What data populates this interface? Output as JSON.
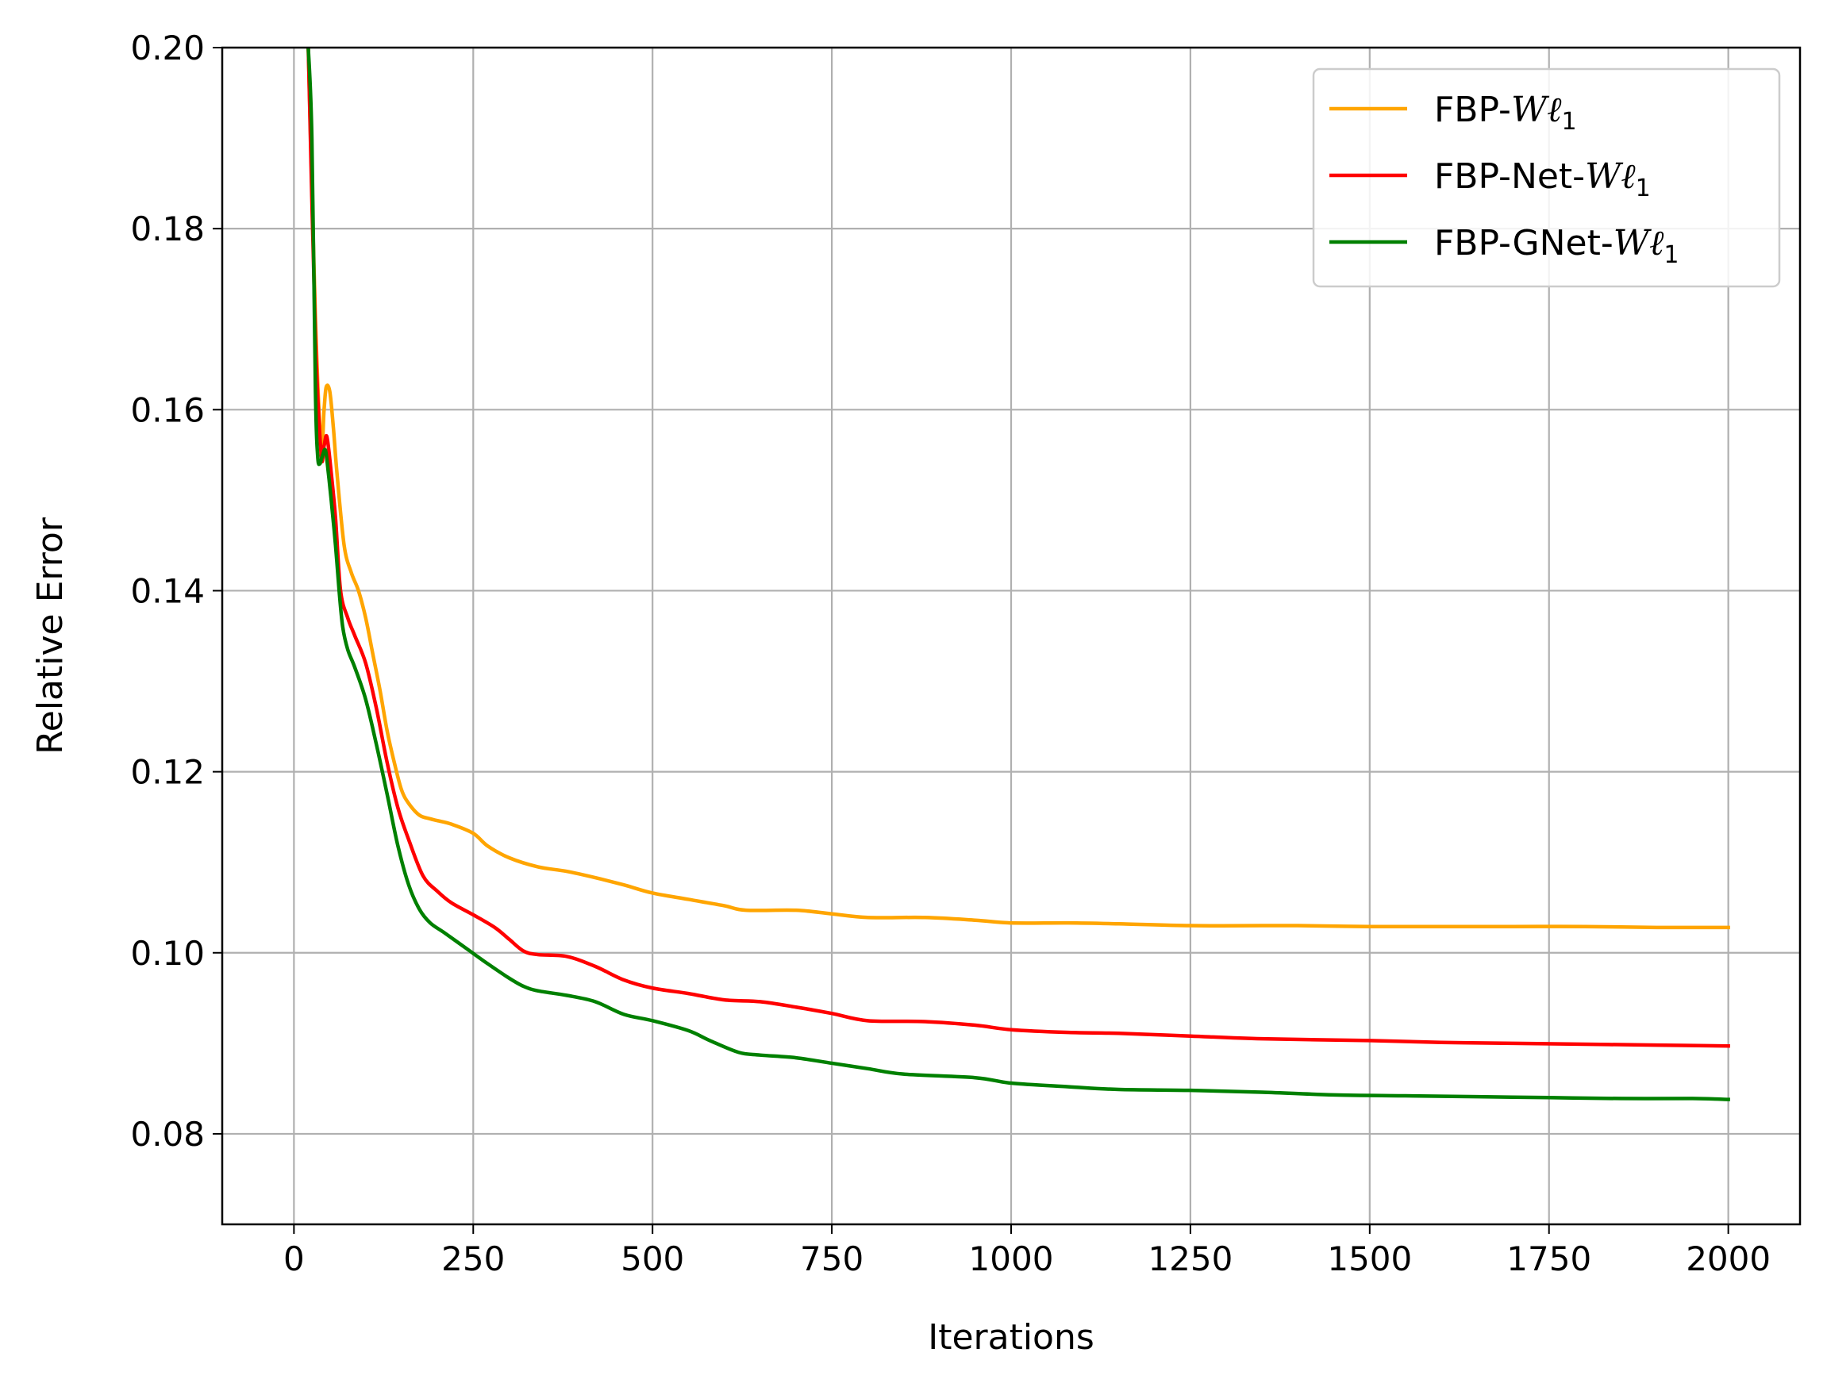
{
  "chart_data": {
    "type": "line",
    "title": "",
    "xlabel": "Iterations",
    "ylabel": "Relative Error",
    "xlim": [
      -100,
      2100
    ],
    "ylim": [
      0.07,
      0.2
    ],
    "xticks": [
      0,
      250,
      500,
      750,
      1000,
      1250,
      1500,
      1750,
      2000
    ],
    "xtick_labels": [
      "0",
      "250",
      "500",
      "750",
      "1000",
      "1250",
      "1500",
      "1750",
      "2000"
    ],
    "yticks": [
      0.08,
      0.1,
      0.12,
      0.14,
      0.16,
      0.18,
      0.2
    ],
    "ytick_labels": [
      "0.08",
      "0.10",
      "0.12",
      "0.14",
      "0.16",
      "0.18",
      "0.20"
    ],
    "grid": true,
    "legend_position": "top-right",
    "series": [
      {
        "name": "FBP-Wℓ1",
        "name_prefix": "FBP-",
        "name_symbol": "Wℓ",
        "name_subscript": "1",
        "color": "#FFA500",
        "x": [
          20,
          30,
          38,
          42,
          45,
          50,
          55,
          60,
          70,
          80,
          90,
          100,
          110,
          120,
          130,
          140,
          150,
          160,
          175,
          190,
          200,
          220,
          250,
          270,
          300,
          340,
          380,
          420,
          460,
          500,
          550,
          600,
          630,
          700,
          750,
          800,
          880,
          950,
          1000,
          1080,
          1150,
          1250,
          1350,
          1400,
          1500,
          1600,
          1700,
          1800,
          1900,
          2000
        ],
        "y": [
          0.2,
          0.17,
          0.156,
          0.16,
          0.1625,
          0.162,
          0.158,
          0.153,
          0.145,
          0.142,
          0.14,
          0.137,
          0.133,
          0.129,
          0.1245,
          0.121,
          0.118,
          0.1165,
          0.1152,
          0.1148,
          0.1146,
          0.1142,
          0.1132,
          0.1118,
          0.1105,
          0.1095,
          0.109,
          0.1083,
          0.1075,
          0.1066,
          0.1059,
          0.1052,
          0.1047,
          0.1047,
          0.1043,
          0.1039,
          0.1039,
          0.1036,
          0.1033,
          0.1033,
          0.1032,
          0.103,
          0.103,
          0.103,
          0.1029,
          0.1029,
          0.1029,
          0.1029,
          0.1028,
          0.1028
        ]
      },
      {
        "name": "FBP-Net-Wℓ1",
        "name_prefix": "FBP-Net-",
        "name_symbol": "Wℓ",
        "name_subscript": "1",
        "color": "#FF0000",
        "x": [
          20,
          30,
          38,
          42,
          46,
          52,
          58,
          65,
          75,
          85,
          100,
          115,
          130,
          145,
          160,
          180,
          200,
          220,
          250,
          280,
          300,
          320,
          340,
          380,
          420,
          460,
          500,
          550,
          600,
          650,
          700,
          750,
          800,
          880,
          950,
          1000,
          1080,
          1150,
          1250,
          1350,
          1500,
          1600,
          1700,
          1800,
          1900,
          2000
        ],
        "y": [
          0.2,
          0.168,
          0.155,
          0.156,
          0.157,
          0.153,
          0.148,
          0.14,
          0.137,
          0.135,
          0.132,
          0.127,
          0.121,
          0.116,
          0.1125,
          0.1085,
          0.1068,
          0.1055,
          0.1042,
          0.1028,
          0.1015,
          0.1002,
          0.0998,
          0.0996,
          0.0985,
          0.097,
          0.0961,
          0.0955,
          0.0948,
          0.0946,
          0.094,
          0.0933,
          0.0925,
          0.0924,
          0.092,
          0.0915,
          0.0912,
          0.0911,
          0.0908,
          0.0905,
          0.0903,
          0.0901,
          0.09,
          0.0899,
          0.0898,
          0.0897
        ]
      },
      {
        "name": "FBP-GNet-Wℓ1",
        "name_prefix": "FBP-GNet-",
        "name_symbol": "Wℓ",
        "name_subscript": "1",
        "color": "#008000",
        "x": [
          20,
          25,
          30,
          33,
          36,
          40,
          44,
          48,
          52,
          58,
          63,
          68,
          75,
          85,
          100,
          115,
          130,
          145,
          160,
          175,
          190,
          210,
          240,
          270,
          300,
          320,
          340,
          380,
          420,
          460,
          500,
          550,
          580,
          620,
          650,
          700,
          750,
          800,
          850,
          950,
          1000,
          1080,
          1150,
          1250,
          1350,
          1450,
          1550,
          1650,
          1750,
          1850,
          1950,
          2000
        ],
        "y": [
          0.2,
          0.19,
          0.162,
          0.155,
          0.154,
          0.155,
          0.1555,
          0.153,
          0.15,
          0.145,
          0.14,
          0.136,
          0.1335,
          0.1315,
          0.128,
          0.123,
          0.1175,
          0.1118,
          0.1075,
          0.1048,
          0.1033,
          0.1022,
          0.1005,
          0.0988,
          0.0972,
          0.0963,
          0.0958,
          0.0953,
          0.0946,
          0.0932,
          0.0925,
          0.0914,
          0.0903,
          0.089,
          0.0887,
          0.0884,
          0.0878,
          0.0872,
          0.0866,
          0.0862,
          0.0856,
          0.0852,
          0.0849,
          0.0848,
          0.0846,
          0.0843,
          0.0842,
          0.0841,
          0.084,
          0.0839,
          0.0839,
          0.0838
        ]
      }
    ]
  }
}
